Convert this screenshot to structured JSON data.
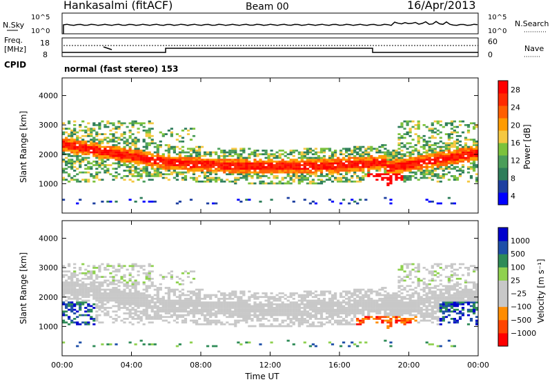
{
  "header": {
    "station": "Hankasalmi (fitACF)",
    "beam": "Beam 00",
    "date": "16/Apr/2013"
  },
  "noise_panel": {
    "left_label": "N.Sky",
    "right_label": "N.Search",
    "left_ticks": [
      "10^5",
      "10^0"
    ],
    "right_ticks": [
      "10^5",
      "10^0"
    ]
  },
  "freq_panel": {
    "left_label_lines": [
      "Freq.",
      "[MHz]"
    ],
    "left_ticks": [
      "18",
      "8"
    ],
    "right_label": "Nave",
    "right_ticks": [
      "60",
      "0"
    ],
    "cpid_label": "CPID",
    "cpid_value": "normal (fast stereo) 153"
  },
  "colors": {
    "power_bar": [
      "#0000ff",
      "#1d3fa0",
      "#2e7d5a",
      "#4b9e5a",
      "#7cc23c",
      "#f5c842",
      "#ff9b00",
      "#ff5f00",
      "#ff2a00",
      "#ff0000"
    ],
    "velocity_bar": [
      "#ff0000",
      "#ff4500",
      "#ff8c00",
      "#c8c8c8",
      "#c8c8c8",
      "#8fd14f",
      "#2e8b57",
      "#1e4fa8",
      "#0000cd"
    ]
  },
  "chart_data": [
    {
      "type": "heatmap",
      "title": "Power",
      "xlabel": "Time UT",
      "ylabel": "Slant Range [km]",
      "x_ticks": [
        "00:00",
        "04:00",
        "08:00",
        "12:00",
        "16:00",
        "20:00",
        "00:00"
      ],
      "y_ticks": [
        "1000",
        "2000",
        "3000",
        "4000"
      ],
      "ylim": [
        0,
        4600
      ],
      "colorbar_label": "Power [dB]",
      "colorbar_ticks": [
        "28",
        "24",
        "20",
        "16",
        "12",
        "8",
        "4"
      ],
      "colorbar_range": [
        0,
        30
      ]
    },
    {
      "type": "heatmap",
      "title": "Velocity",
      "xlabel": "Time UT",
      "ylabel": "Slant Range [km]",
      "x_ticks": [
        "00:00",
        "04:00",
        "08:00",
        "12:00",
        "16:00",
        "20:00",
        "00:00"
      ],
      "y_ticks": [
        "1000",
        "2000",
        "3000",
        "4000"
      ],
      "ylim": [
        0,
        4600
      ],
      "colorbar_label": "Velocity [m s⁻¹]",
      "colorbar_ticks": [
        "1000",
        "500",
        "100",
        "25",
        "−25",
        "−100",
        "−500",
        "−1000"
      ]
    }
  ],
  "x_axis_title": "Time UT"
}
